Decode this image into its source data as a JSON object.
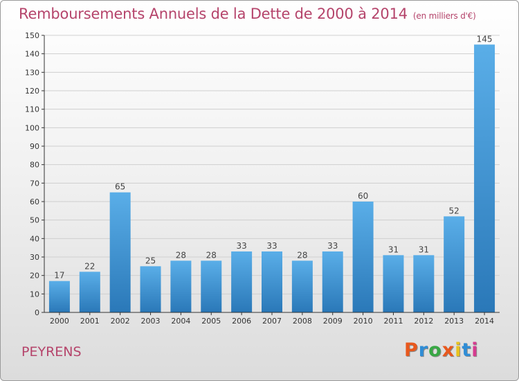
{
  "header": {
    "title": "Remboursements Annuels de la Dette de 2000 à 2014",
    "unit": "(en milliers d'€)"
  },
  "footer": {
    "commune": "PEYRENS",
    "logo_text": "Proxiti"
  },
  "colors": {
    "title": "#b5446b",
    "bar_top": "#5aaee8",
    "bar_bottom": "#2a78b8",
    "axis": "#333333",
    "grid": "#cfcfcf",
    "logo": [
      "#e8581d",
      "#2f8dd6",
      "#39a845",
      "#e8581d",
      "#e8c21d",
      "#2f8dd6",
      "#d63b8f"
    ]
  },
  "chart_data": {
    "type": "bar",
    "categories": [
      "2000",
      "2001",
      "2002",
      "2003",
      "2004",
      "2005",
      "2006",
      "2007",
      "2008",
      "2009",
      "2010",
      "2011",
      "2012",
      "2013",
      "2014"
    ],
    "values": [
      17,
      22,
      65,
      25,
      28,
      28,
      33,
      33,
      28,
      33,
      60,
      31,
      31,
      52,
      145
    ],
    "ylim": [
      0,
      150
    ],
    "yticks": [
      0,
      10,
      20,
      30,
      40,
      50,
      60,
      70,
      80,
      90,
      100,
      110,
      120,
      130,
      140,
      150
    ],
    "grid": true,
    "data_labels": true
  }
}
